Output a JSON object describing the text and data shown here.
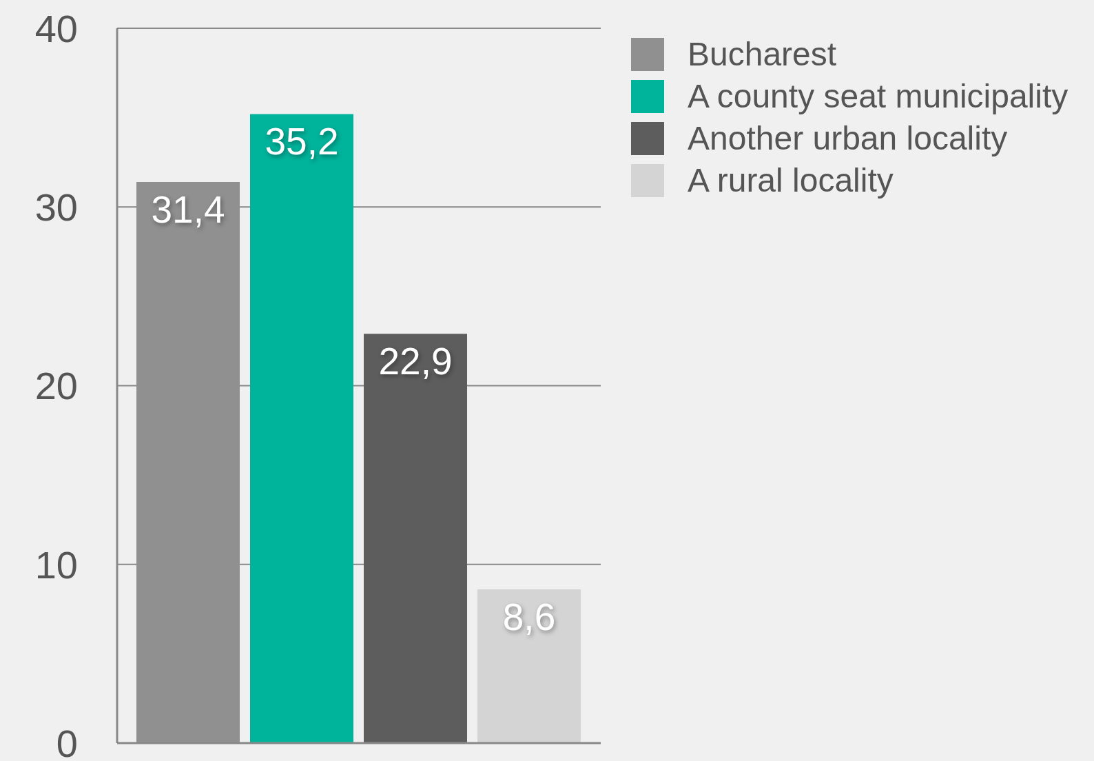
{
  "chart_data": {
    "type": "bar",
    "categories": [
      null
    ],
    "series": [
      {
        "name": "Bucharest",
        "color": "#909090",
        "values": [
          31.4
        ],
        "value_labels": [
          "31,4"
        ]
      },
      {
        "name": "A county seat municipality",
        "color": "#00b39b",
        "values": [
          35.2
        ],
        "value_labels": [
          "35,2"
        ]
      },
      {
        "name": "Another urban locality",
        "color": "#5d5d5d",
        "values": [
          22.9
        ],
        "value_labels": [
          "22,9"
        ]
      },
      {
        "name": "A rural locality",
        "color": "#d4d4d4",
        "values": [
          8.6
        ],
        "value_labels": [
          "8,6"
        ]
      }
    ],
    "ylim": [
      0,
      40
    ],
    "yticks": [
      0,
      10,
      20,
      30,
      40
    ],
    "grid": "y",
    "legend": "top right"
  }
}
